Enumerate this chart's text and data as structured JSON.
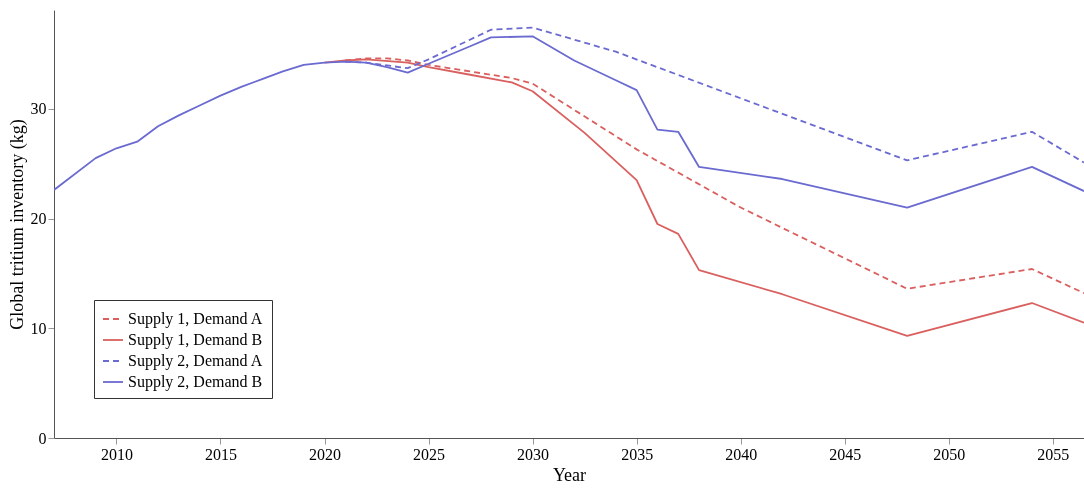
{
  "chart_data": {
    "type": "line",
    "xlabel": "Year",
    "ylabel": "Global tritium inventory (kg)",
    "xlim": [
      2007,
      2056.5
    ],
    "ylim": [
      0,
      39
    ],
    "xticks": [
      2010,
      2015,
      2020,
      2025,
      2030,
      2035,
      2040,
      2045,
      2050,
      2055
    ],
    "yticks": [
      0,
      10,
      20,
      30
    ],
    "grid": false,
    "legend": "bottom left",
    "series": [
      {
        "name": "Supply 1, Demand A",
        "color": "#d9605f",
        "line_style": "dashed",
        "x": [
          2021,
          2022,
          2023,
          2024,
          2025,
          2028,
          2029,
          2030,
          2031,
          2035,
          2040,
          2048,
          2054,
          2056.5
        ],
        "values": [
          34.4,
          34.6,
          34.6,
          34.4,
          34.0,
          33.1,
          32.8,
          32.3,
          31.1,
          26.3,
          21.0,
          13.6,
          15.4,
          13.2
        ]
      },
      {
        "name": "Supply 1, Demand B",
        "color": "#d9605f",
        "line_style": "solid",
        "x": [
          2020,
          2021,
          2022,
          2024,
          2025,
          2027,
          2029,
          2030,
          2032.5,
          2035,
          2036,
          2037,
          2038,
          2042,
          2048,
          2054,
          2056.5
        ],
        "values": [
          34.2,
          34.4,
          34.5,
          34.2,
          33.8,
          33.1,
          32.4,
          31.6,
          27.8,
          23.5,
          19.5,
          18.6,
          15.3,
          13.1,
          9.3,
          12.3,
          10.5
        ]
      },
      {
        "name": "Supply 2, Demand A",
        "color": "#6a6ad0",
        "line_style": "dashed",
        "x": [
          2021,
          2022,
          2024,
          2025,
          2028,
          2030,
          2034,
          2048,
          2054,
          2056.5
        ],
        "values": [
          34.3,
          34.2,
          33.7,
          34.5,
          37.2,
          37.4,
          35.2,
          25.3,
          27.9,
          25.1
        ]
      },
      {
        "name": "Supply 2, Demand B",
        "color": "#6a6ad0",
        "line_style": "solid",
        "x": [
          2007,
          2009,
          2010,
          2011,
          2012,
          2013,
          2014,
          2015,
          2016,
          2017,
          2018,
          2019,
          2020,
          2021,
          2022,
          2023,
          2024,
          2025,
          2026,
          2027,
          2028,
          2030,
          2032,
          2034,
          2035,
          2036,
          2037,
          2038,
          2042,
          2048,
          2054,
          2056.5
        ],
        "values": [
          22.6,
          25.5,
          26.4,
          27.0,
          28.4,
          29.4,
          30.3,
          31.2,
          32.0,
          32.7,
          33.4,
          34.0,
          34.2,
          34.3,
          34.2,
          33.8,
          33.3,
          34.1,
          34.9,
          35.7,
          36.5,
          36.6,
          34.4,
          32.6,
          31.7,
          28.1,
          27.9,
          24.7,
          23.6,
          21.0,
          24.7,
          22.5
        ]
      }
    ]
  }
}
